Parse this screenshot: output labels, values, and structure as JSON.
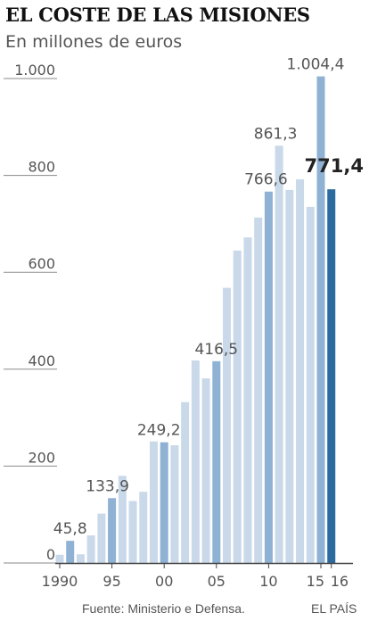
{
  "title": "EL COSTE DE LAS MISIONES",
  "subtitle": "En millones de euros",
  "footer": {
    "source": "Fuente: Ministerio e Defensa.",
    "brand": "EL PAÍS"
  },
  "colors": {
    "light": "#c9d9ea",
    "medium": "#8fb1d3",
    "dark": "#2c6b9f",
    "axis": "#444444",
    "tick_text": "#555555"
  },
  "chart_data": {
    "type": "bar",
    "title": "EL COSTE DE LAS MISIONES",
    "subtitle": "En millones de euros",
    "xlabel": "",
    "ylabel": "",
    "ylim": [
      0,
      1050
    ],
    "grid": false,
    "categories": [
      "1990",
      "1991",
      "1992",
      "1993",
      "1994",
      "1995",
      "1996",
      "1997",
      "1998",
      "1999",
      "2000",
      "2001",
      "2002",
      "2003",
      "2004",
      "2005",
      "2006",
      "2007",
      "2008",
      "2009",
      "2010",
      "2011",
      "2012",
      "2013",
      "2014",
      "2015",
      "2016"
    ],
    "values": [
      17,
      45.8,
      18,
      57,
      102,
      133.9,
      180,
      128,
      147,
      251,
      249.2,
      243,
      332,
      418,
      381,
      416.5,
      568,
      645,
      672,
      713,
      766.6,
      861.3,
      770,
      792,
      735,
      1004.4,
      771.4
    ],
    "bar_tone": [
      "light",
      "medium",
      "light",
      "light",
      "light",
      "medium",
      "light",
      "light",
      "light",
      "light",
      "medium",
      "light",
      "light",
      "light",
      "light",
      "medium",
      "light",
      "light",
      "light",
      "light",
      "medium",
      "light",
      "light",
      "light",
      "light",
      "medium",
      "dark"
    ],
    "y_ticks": [
      0,
      200,
      400,
      600,
      800,
      1000
    ],
    "y_tick_labels": [
      "0",
      "200",
      "400",
      "600",
      "800",
      "1.000"
    ],
    "x_tick_years": [
      1990,
      1995,
      2000,
      2005,
      2010,
      2015,
      2016
    ],
    "x_tick_labels": [
      "1990",
      "95",
      "00",
      "05",
      "10",
      "15",
      "16"
    ],
    "annotations": [
      {
        "year": 1991,
        "label": "45,8",
        "emphasis": false
      },
      {
        "year": 1995,
        "label": "133,9",
        "emphasis": false
      },
      {
        "year": 2000,
        "label": "249,2",
        "emphasis": false
      },
      {
        "year": 2005,
        "label": "416,5",
        "emphasis": false
      },
      {
        "year": 2010,
        "label": "766,6",
        "emphasis": false
      },
      {
        "year": 2011,
        "label": "861,3",
        "emphasis": false
      },
      {
        "year": 2015,
        "label": "1.004,4",
        "emphasis": false
      },
      {
        "year": 2016,
        "label": "771,4",
        "emphasis": true
      }
    ]
  }
}
